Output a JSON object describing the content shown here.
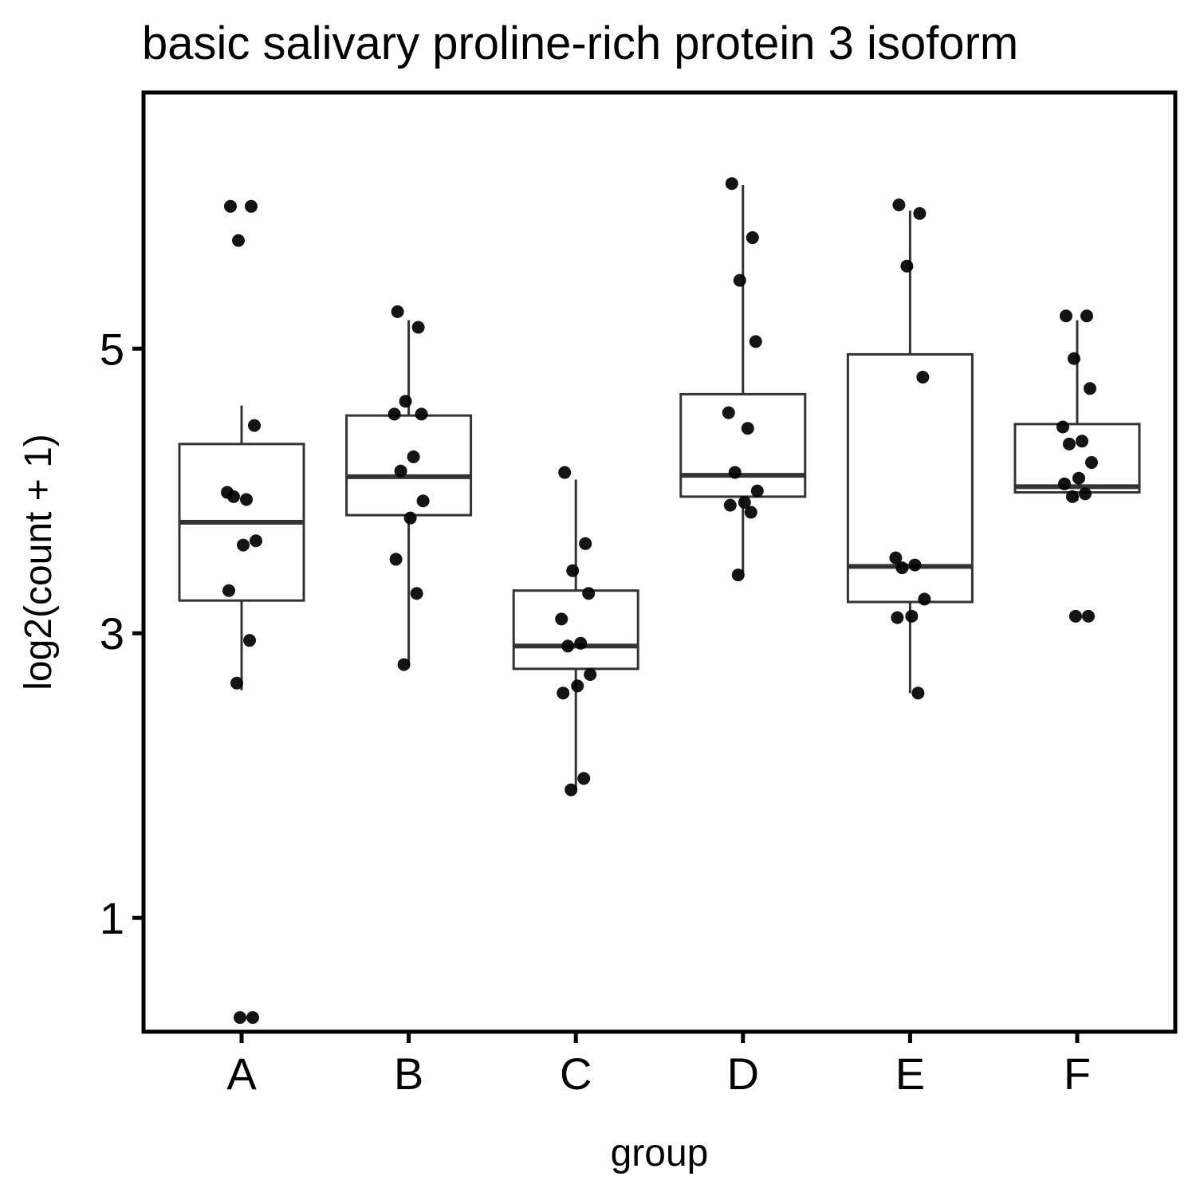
{
  "chart_data": {
    "type": "box",
    "title": "basic salivary proline-rich protein 3 isoform",
    "xlabel": "group",
    "ylabel": "log2(count + 1)",
    "y_ticks": [
      1,
      3,
      5
    ],
    "ylim": [
      0.2,
      6.8
    ],
    "categories": [
      "A",
      "B",
      "C",
      "D",
      "E",
      "F"
    ],
    "boxes": [
      {
        "name": "A",
        "whisker_low": 2.6,
        "q1": 3.23,
        "median": 3.78,
        "q3": 4.33,
        "whisker_high": 4.6
      },
      {
        "name": "B",
        "whisker_low": 2.77,
        "q1": 3.83,
        "median": 4.1,
        "q3": 4.53,
        "whisker_high": 5.2
      },
      {
        "name": "C",
        "whisker_low": 1.9,
        "q1": 2.75,
        "median": 2.91,
        "q3": 3.3,
        "whisker_high": 4.08
      },
      {
        "name": "D",
        "whisker_low": 3.43,
        "q1": 3.96,
        "median": 4.11,
        "q3": 4.68,
        "whisker_high": 6.15
      },
      {
        "name": "E",
        "whisker_low": 2.58,
        "q1": 3.22,
        "median": 3.47,
        "q3": 4.96,
        "whisker_high": 5.97
      },
      {
        "name": "F",
        "whisker_low": 3.93,
        "q1": 3.99,
        "median": 4.03,
        "q3": 4.47,
        "whisker_high": 5.2
      }
    ],
    "points": [
      {
        "group": "A",
        "values": [
          6.0,
          6.0,
          5.76,
          4.46,
          3.99,
          3.94,
          3.96,
          3.65,
          3.62,
          3.3,
          2.95,
          2.65,
          0.3,
          0.3
        ]
      },
      {
        "name": "B",
        "group": "B",
        "values": [
          5.26,
          5.15,
          4.63,
          4.54,
          4.54,
          4.24,
          4.14,
          3.93,
          3.81,
          3.52,
          3.28,
          2.78
        ]
      },
      {
        "group": "C",
        "values": [
          4.13,
          3.63,
          3.44,
          3.28,
          3.1,
          2.93,
          2.91,
          2.71,
          2.63,
          2.58,
          1.98,
          1.9
        ]
      },
      {
        "group": "D",
        "values": [
          6.16,
          5.78,
          5.48,
          5.05,
          4.55,
          4.44,
          4.13,
          4.0,
          3.92,
          3.9,
          3.85,
          3.41
        ]
      },
      {
        "group": "E",
        "values": [
          6.01,
          5.95,
          5.58,
          4.8,
          3.53,
          3.48,
          3.46,
          3.24,
          3.12,
          3.11,
          2.58
        ]
      },
      {
        "group": "F",
        "values": [
          5.23,
          5.23,
          4.93,
          4.72,
          4.45,
          4.35,
          4.33,
          4.2,
          4.09,
          4.05,
          3.98,
          3.96,
          3.12,
          3.12
        ]
      }
    ]
  }
}
